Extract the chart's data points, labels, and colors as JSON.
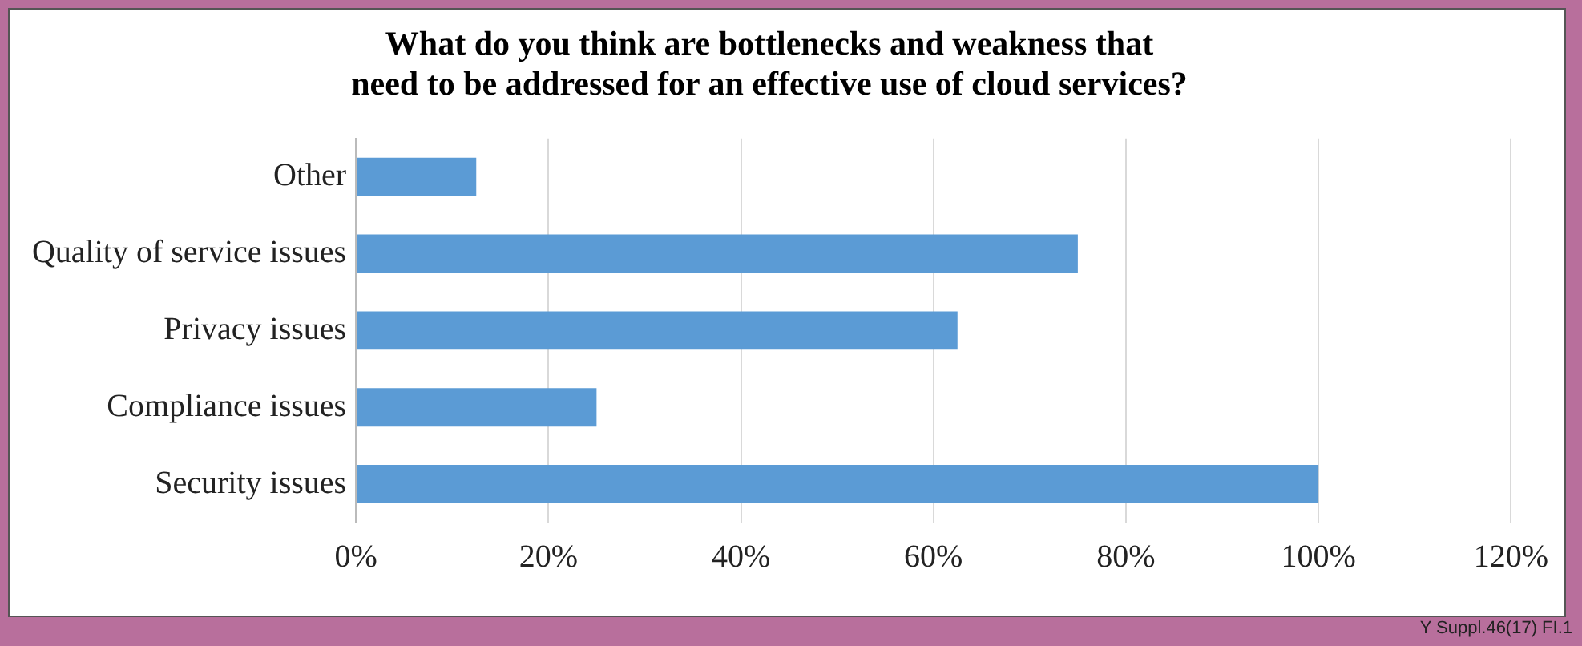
{
  "chart_data": {
    "type": "bar",
    "orientation": "horizontal",
    "title": "What do you think are bottlenecks and weakness that\nneed to be addressed for an effective use of cloud services?",
    "categories": [
      "Other",
      "Quality of service issues",
      "Privacy issues",
      "Compliance issues",
      "Security issues"
    ],
    "values": [
      12.5,
      75,
      62.5,
      25,
      100
    ],
    "color": "#5b9bd5",
    "xlim": [
      0,
      120
    ],
    "xticks": [
      {
        "value": 0,
        "label": "0%"
      },
      {
        "value": 20,
        "label": "20%"
      },
      {
        "value": 40,
        "label": "40%"
      },
      {
        "value": 60,
        "label": "60%"
      },
      {
        "value": 80,
        "label": "80%"
      },
      {
        "value": 100,
        "label": "100%"
      },
      {
        "value": 120,
        "label": "120%"
      }
    ],
    "grid": "x",
    "legend": false,
    "annotations": [
      "Y Suppl.46(17) FI.1"
    ]
  }
}
